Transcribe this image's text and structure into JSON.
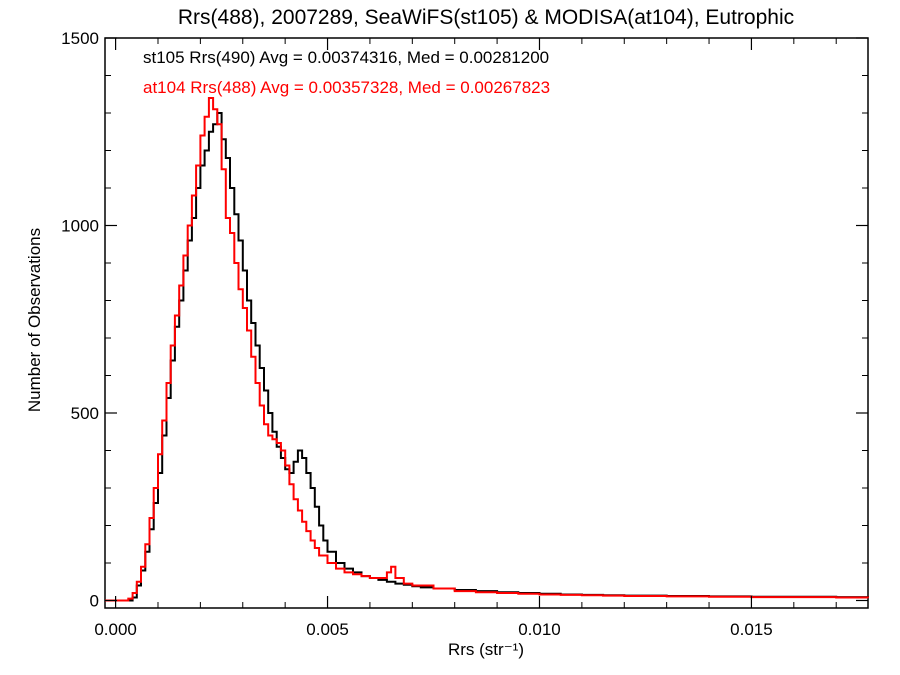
{
  "chart_data": {
    "type": "line",
    "title": "Rrs(488), 2007289, SeaWiFS(st105) & MODISA(at104), Eutrophic",
    "xlabel": "Rrs (str⁻¹)",
    "ylabel": "Number of Observations",
    "xlim": [
      -0.00025,
      0.01775
    ],
    "ylim": [
      -20,
      1500
    ],
    "xticks": [
      0.0,
      0.005,
      0.01,
      0.015
    ],
    "xtick_labels": [
      "0.000",
      "0.005",
      "0.010",
      "0.015"
    ],
    "yticks": [
      0,
      500,
      1000,
      1500
    ],
    "ytick_labels": [
      "0",
      "500",
      "1000",
      "1500"
    ],
    "grid": false,
    "series": [
      {
        "name": "st105 Rrs(490)",
        "color": "#000000",
        "annotation": "st105 Rrs(490) Avg = 0.00374316, Med = 0.00281200",
        "x": [
          -0.00025,
          0.0004,
          0.0005,
          0.0006,
          0.0007,
          0.0008,
          0.0009,
          0.001,
          0.0011,
          0.0012,
          0.0013,
          0.0014,
          0.0015,
          0.0016,
          0.0017,
          0.0018,
          0.0019,
          0.002,
          0.0021,
          0.0022,
          0.0023,
          0.0024,
          0.0025,
          0.0026,
          0.0027,
          0.0028,
          0.0029,
          0.003,
          0.0031,
          0.0032,
          0.0033,
          0.0034,
          0.0035,
          0.0036,
          0.0037,
          0.0038,
          0.0039,
          0.004,
          0.0041,
          0.0042,
          0.0043,
          0.0044,
          0.0045,
          0.0046,
          0.0047,
          0.0048,
          0.0049,
          0.005,
          0.0052,
          0.0054,
          0.0056,
          0.0058,
          0.006,
          0.0062,
          0.0064,
          0.0066,
          0.0068,
          0.007,
          0.0072,
          0.0075,
          0.008,
          0.0085,
          0.009,
          0.0095,
          0.01,
          0.0105,
          0.011,
          0.0115,
          0.012,
          0.013,
          0.014,
          0.015,
          0.016,
          0.017,
          0.01775
        ],
        "y": [
          0,
          8,
          40,
          80,
          130,
          190,
          260,
          340,
          440,
          540,
          640,
          730,
          800,
          880,
          960,
          1020,
          1100,
          1160,
          1200,
          1250,
          1270,
          1300,
          1230,
          1180,
          1100,
          1030,
          960,
          880,
          800,
          740,
          680,
          620,
          560,
          500,
          450,
          410,
          380,
          350,
          340,
          370,
          400,
          380,
          340,
          300,
          250,
          200,
          160,
          130,
          100,
          85,
          75,
          65,
          60,
          55,
          50,
          45,
          42,
          38,
          35,
          32,
          28,
          25,
          22,
          20,
          18,
          16,
          15,
          14,
          13,
          12,
          11,
          10,
          10,
          9,
          8
        ]
      },
      {
        "name": "at104 Rrs(488)",
        "color": "#ff0000",
        "annotation": "at104 Rrs(488) Avg = 0.00357328, Med = 0.00267823",
        "x": [
          -0.00025,
          0.0003,
          0.0004,
          0.0005,
          0.0006,
          0.0007,
          0.0008,
          0.0009,
          0.001,
          0.0011,
          0.0012,
          0.0013,
          0.0014,
          0.0015,
          0.0016,
          0.0017,
          0.0018,
          0.0019,
          0.002,
          0.0021,
          0.0022,
          0.0023,
          0.0024,
          0.0025,
          0.0026,
          0.0027,
          0.0028,
          0.0029,
          0.003,
          0.0031,
          0.0032,
          0.0033,
          0.0034,
          0.0035,
          0.0036,
          0.0037,
          0.0038,
          0.0039,
          0.004,
          0.0041,
          0.0042,
          0.0043,
          0.0044,
          0.0045,
          0.0046,
          0.0047,
          0.0048,
          0.005,
          0.0052,
          0.0054,
          0.0056,
          0.0058,
          0.006,
          0.0062,
          0.0064,
          0.0065,
          0.0066,
          0.0068,
          0.007,
          0.0075,
          0.008,
          0.0085,
          0.009,
          0.0095,
          0.01,
          0.0105,
          0.011,
          0.0115,
          0.012,
          0.013,
          0.014,
          0.015,
          0.016,
          0.017,
          0.01775
        ],
        "y": [
          0,
          5,
          20,
          50,
          90,
          150,
          220,
          300,
          390,
          480,
          580,
          680,
          760,
          840,
          920,
          1000,
          1080,
          1160,
          1240,
          1290,
          1340,
          1310,
          1270,
          1150,
          1020,
          980,
          900,
          830,
          780,
          720,
          650,
          580,
          520,
          470,
          440,
          430,
          420,
          400,
          360,
          310,
          270,
          240,
          210,
          185,
          160,
          140,
          120,
          100,
          85,
          75,
          70,
          65,
          60,
          60,
          75,
          90,
          60,
          45,
          40,
          32,
          25,
          22,
          20,
          18,
          16,
          15,
          14,
          13,
          12,
          11,
          10,
          9,
          9,
          8,
          7
        ]
      }
    ]
  }
}
